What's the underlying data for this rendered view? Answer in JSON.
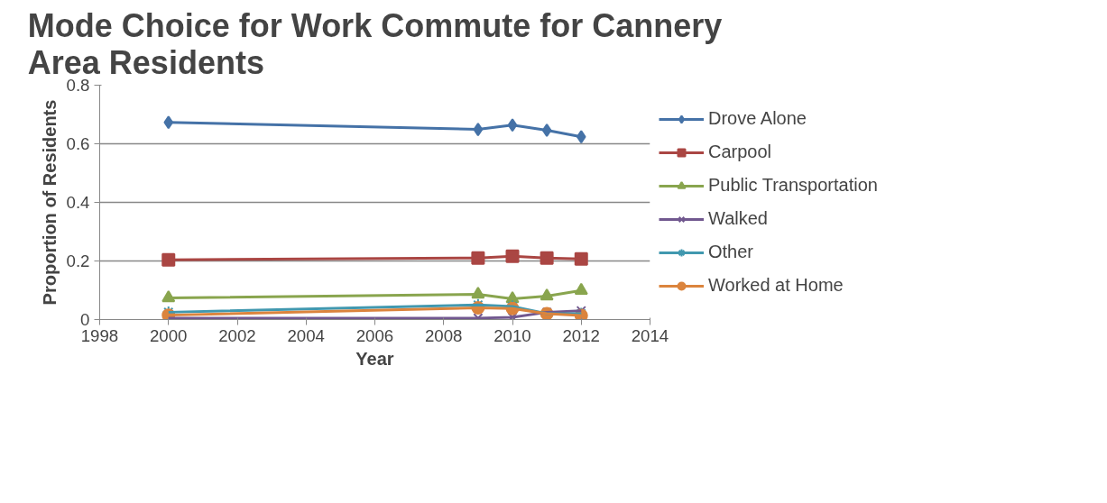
{
  "chart_data": {
    "type": "line",
    "title": "Mode Choice for Work Commute for Cannery Area Residents",
    "xlabel": "Year",
    "ylabel": "Proportion of Residents",
    "x": [
      2000,
      2009,
      2010,
      2011,
      2012
    ],
    "xlim": [
      1998,
      2014
    ],
    "xticks": [
      1998,
      2000,
      2002,
      2004,
      2006,
      2008,
      2010,
      2012,
      2014
    ],
    "ylim": [
      0,
      0.8
    ],
    "yticks": [
      0,
      0.2,
      0.4,
      0.6,
      0.8
    ],
    "grid": "y",
    "legend": "right",
    "series": [
      {
        "name": "Drove Alone",
        "color": "#4572a7",
        "marker": "diamond",
        "values": [
          0.673,
          0.649,
          0.664,
          0.646,
          0.624
        ]
      },
      {
        "name": "Carpool",
        "color": "#aa4643",
        "marker": "square",
        "values": [
          0.204,
          0.21,
          0.216,
          0.21,
          0.207
        ]
      },
      {
        "name": "Public Transportation",
        "color": "#89a54e",
        "marker": "triangle",
        "values": [
          0.074,
          0.086,
          0.071,
          0.08,
          0.099
        ]
      },
      {
        "name": "Walked",
        "color": "#71588f",
        "marker": "x",
        "values": [
          0.005,
          0.005,
          0.008,
          0.025,
          0.03
        ]
      },
      {
        "name": "Other",
        "color": "#4198af",
        "marker": "cross",
        "values": [
          0.025,
          0.05,
          0.045,
          0.02,
          0.02
        ]
      },
      {
        "name": "Worked at Home",
        "color": "#db843d",
        "marker": "circle",
        "values": [
          0.015,
          0.04,
          0.038,
          0.02,
          0.014
        ]
      }
    ]
  }
}
